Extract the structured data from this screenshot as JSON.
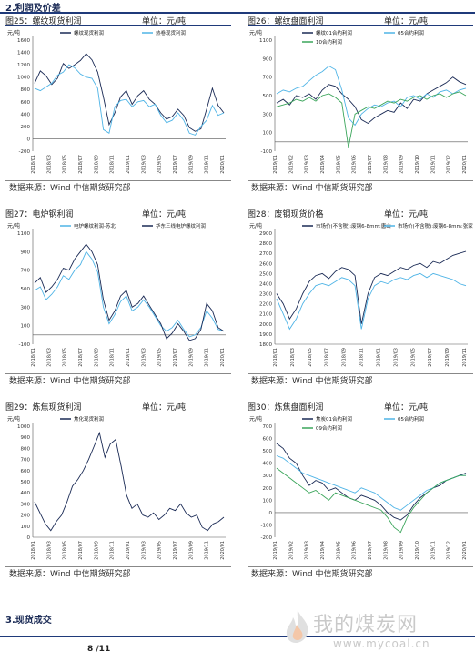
{
  "sections": {
    "profit": "2.利润及价差",
    "spot": "3.现货成交"
  },
  "footer": {
    "page": "8 /11",
    "watermark_title": "我的煤炭网",
    "watermark_url": "www.mycoal.cn",
    "watermark_icon": "flame-logo-icon"
  },
  "charts": [
    {
      "id": "fig25",
      "caption": "图25：螺纹现货利润",
      "unit": "单位：元/吨",
      "source": "数据来源：Wind  中信期货研究部",
      "ylabel": "元/吨",
      "yticks": [
        "1600",
        "1400",
        "1200",
        "1000",
        "800",
        "600",
        "400",
        "200",
        "0",
        "-200"
      ],
      "ylim": [
        -200,
        1600
      ],
      "xticks": [
        "2018/01",
        "2018/03",
        "2018/05",
        "2018/07",
        "2018/09",
        "2018/11",
        "2019/01",
        "2019/03",
        "2019/05",
        "2019/07",
        "2019/09",
        "2019/11",
        "2020/01"
      ],
      "legend": [
        "螺纹现货利润",
        "热卷现货利润"
      ],
      "colors": [
        "#1a2a55",
        "#4fb4e6"
      ],
      "series": [
        [
          900,
          1100,
          1020,
          880,
          980,
          1220,
          1140,
          1200,
          1270,
          1380,
          1280,
          1080,
          680,
          230,
          420,
          680,
          780,
          560,
          700,
          780,
          640,
          560,
          420,
          320,
          360,
          480,
          380,
          180,
          120,
          160,
          480,
          820,
          540,
          420
        ],
        [
          820,
          780,
          840,
          900,
          1030,
          1080,
          1200,
          1150,
          1050,
          1000,
          980,
          820,
          150,
          90,
          520,
          620,
          640,
          520,
          600,
          620,
          520,
          560,
          380,
          260,
          300,
          420,
          300,
          90,
          60,
          200,
          300,
          540,
          380,
          420
        ]
      ]
    },
    {
      "id": "fig26",
      "caption": "图26：螺纹盘面利润",
      "unit": "单位：元/吨",
      "source": "数据来源：Wind  中信期货研究部",
      "ylabel": "元/吨",
      "yticks": [
        "1100",
        "900",
        "700",
        "500",
        "300",
        "100",
        "-100"
      ],
      "ylim": [
        -100,
        1100
      ],
      "xticks": [
        "2019/01",
        "2019/02",
        "2019/03",
        "2019/04",
        "2019/05",
        "2019/06",
        "2019/07",
        "2019/08",
        "2019/09",
        "2019/10",
        "2019/11",
        "2019/12",
        "2020/01"
      ],
      "legend": [
        "螺纹01合约利润",
        "05合约利润",
        "10合约利润"
      ],
      "colors": [
        "#1a2a55",
        "#4fb4e6",
        "#3aa55a"
      ],
      "series": [
        [
          420,
          460,
          400,
          500,
          480,
          520,
          460,
          560,
          620,
          600,
          520,
          460,
          380,
          240,
          200,
          260,
          300,
          340,
          320,
          420,
          360,
          460,
          440,
          520,
          560,
          600,
          640,
          700,
          650,
          620
        ],
        [
          520,
          560,
          540,
          580,
          600,
          660,
          720,
          760,
          820,
          780,
          560,
          260,
          180,
          300,
          360,
          400,
          380,
          420,
          440,
          380,
          480,
          500,
          460,
          520,
          480,
          540,
          560,
          520,
          560,
          580
        ],
        [
          380,
          400,
          420,
          460,
          440,
          480,
          440,
          500,
          520,
          480,
          420,
          -60,
          300,
          340,
          380,
          360,
          400,
          440,
          420,
          460,
          440,
          480,
          500,
          460,
          500,
          520,
          480,
          520,
          540,
          500
        ]
      ]
    },
    {
      "id": "fig27",
      "caption": "图27：电炉钢利润",
      "unit": "单位：元/吨",
      "source": "数据来源：Wind  中信期货研究部",
      "ylabel": "元/吨",
      "yticks": [
        "1100",
        "900",
        "700",
        "500",
        "300",
        "100",
        "-100"
      ],
      "ylim": [
        -100,
        1100
      ],
      "xticks": [
        "2018/01",
        "2018/03",
        "2018/05",
        "2018/07",
        "2018/09",
        "2018/11",
        "2019/01",
        "2019/03",
        "2019/05",
        "2019/07",
        "2019/09",
        "2019/11",
        "2020/01"
      ],
      "legend": [
        "电炉螺纹利润-苏北",
        "华东三线电炉螺纹利润"
      ],
      "colors": [
        "#4fb4e6",
        "#1a2a55"
      ],
      "series": [
        [
          480,
          520,
          380,
          440,
          520,
          640,
          600,
          700,
          760,
          900,
          820,
          680,
          300,
          120,
          220,
          360,
          420,
          260,
          300,
          380,
          300,
          200,
          100,
          40,
          80,
          160,
          60,
          -20,
          0,
          80,
          260,
          180,
          60,
          40
        ],
        [
          560,
          620,
          460,
          520,
          600,
          720,
          700,
          820,
          900,
          980,
          900,
          760,
          380,
          160,
          260,
          420,
          480,
          300,
          340,
          420,
          320,
          220,
          120,
          -40,
          20,
          120,
          40,
          -60,
          -40,
          60,
          340,
          260,
          80,
          40
        ]
      ]
    },
    {
      "id": "fig28",
      "caption": "图28：废钢现货价格",
      "unit": "单位：元/吨",
      "source": "数据来源：Wind  中信期货研究部",
      "ylabel": "元/吨",
      "yticks": [
        "2900",
        "2800",
        "2700",
        "2600",
        "2500",
        "2400",
        "2300",
        "2200",
        "2100",
        "2000",
        "1900",
        "1800"
      ],
      "ylim": [
        1800,
        2900
      ],
      "xticks": [
        "2018/01",
        "2018/03",
        "2018/05",
        "2018/07",
        "2018/09",
        "2018/11",
        "2019/01",
        "2019/03",
        "2019/05",
        "2019/07",
        "2019/09",
        "2019/11"
      ],
      "legend": [
        "市场价(不含税):废钢6-8mm:唐山",
        "市场价(不含税):废钢6-8mm:张家港"
      ],
      "colors": [
        "#1a2a55",
        "#4fb4e6"
      ],
      "series": [
        [
          2300,
          2200,
          2050,
          2150,
          2300,
          2420,
          2480,
          2500,
          2450,
          2520,
          2560,
          2540,
          2480,
          2000,
          2300,
          2460,
          2500,
          2480,
          2520,
          2560,
          2540,
          2580,
          2600,
          2560,
          2620,
          2600,
          2640,
          2680,
          2700,
          2720
        ],
        [
          2250,
          2100,
          1950,
          2050,
          2200,
          2300,
          2380,
          2400,
          2380,
          2420,
          2460,
          2440,
          2380,
          1950,
          2250,
          2380,
          2420,
          2400,
          2440,
          2460,
          2440,
          2480,
          2500,
          2460,
          2500,
          2480,
          2460,
          2440,
          2400,
          2380
        ]
      ]
    },
    {
      "id": "fig29",
      "caption": "图29：炼焦现货利润",
      "unit": "单位：元/吨",
      "source": "数据来源：Wind  中信期货研究部",
      "ylabel": "元/吨",
      "yticks": [
        "1000",
        "900",
        "800",
        "700",
        "600",
        "500",
        "400",
        "300",
        "200",
        "100",
        "0"
      ],
      "ylim": [
        0,
        1000
      ],
      "xticks": [
        "2018/01",
        "2018/03",
        "2018/05",
        "2018/07",
        "2018/09",
        "2018/11",
        "2019/01",
        "2019/03",
        "2019/05",
        "2019/07",
        "2019/09",
        "2019/11",
        "2020/01"
      ],
      "legend": [
        "焦化现货利润"
      ],
      "colors": [
        "#1a2a55"
      ],
      "series": [
        [
          320,
          220,
          120,
          60,
          140,
          200,
          320,
          460,
          520,
          600,
          700,
          820,
          940,
          720,
          840,
          880,
          640,
          380,
          260,
          300,
          200,
          180,
          220,
          160,
          200,
          260,
          240,
          300,
          220,
          180,
          200,
          90,
          60,
          120,
          140,
          180
        ]
      ]
    },
    {
      "id": "fig30",
      "caption": "图30：炼焦盘面利润",
      "unit": "单位：元/吨",
      "source": "数据来源：Wind  中信期货研究部",
      "ylabel": "元/吨",
      "yticks": [
        "700",
        "600",
        "500",
        "400",
        "300",
        "200",
        "100",
        "0",
        "-100",
        "-200"
      ],
      "ylim": [
        -200,
        700
      ],
      "xticks": [
        "2019/01",
        "2019/02",
        "2019/03",
        "2019/04",
        "2019/05",
        "2019/06",
        "2019/07",
        "2019/08",
        "2019/09",
        "2019/10",
        "2019/11",
        "2019/12",
        "2020/01"
      ],
      "legend": [
        "焦炭01合约利润",
        "05合约利润",
        "09合约利润"
      ],
      "colors": [
        "#1a2a55",
        "#4fb4e6",
        "#3aa55a"
      ],
      "series": [
        [
          560,
          520,
          440,
          400,
          300,
          220,
          260,
          240,
          180,
          200,
          160,
          120,
          100,
          140,
          120,
          100,
          60,
          0,
          -40,
          -60,
          -20,
          60,
          120,
          160,
          200,
          220,
          260,
          280,
          300,
          320
        ],
        [
          460,
          440,
          400,
          360,
          320,
          300,
          280,
          260,
          240,
          220,
          200,
          180,
          160,
          200,
          180,
          160,
          120,
          80,
          40,
          20,
          60,
          100,
          140,
          180,
          200,
          240,
          260,
          280,
          300,
          300
        ],
        [
          360,
          320,
          280,
          240,
          200,
          160,
          180,
          140,
          100,
          160,
          140,
          120,
          100,
          80,
          60,
          40,
          20,
          -40,
          -120,
          -160,
          -40,
          40,
          100,
          160,
          200,
          240,
          260,
          280,
          300,
          300
        ]
      ]
    }
  ]
}
